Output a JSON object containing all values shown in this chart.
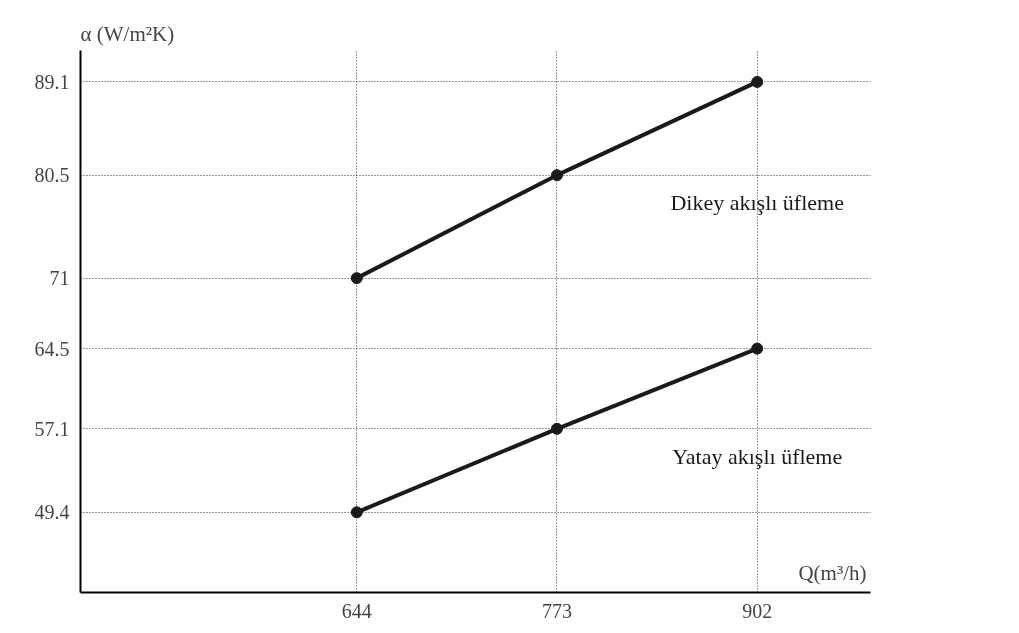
{
  "chart_data": {
    "type": "line",
    "xlabel": "Q(m³/h)",
    "ylabel": "α (W/m²K)",
    "x": [
      644,
      773,
      902
    ],
    "series": [
      {
        "name": "Dikey akışlı üfleme",
        "color": "#1a1a1a",
        "values": [
          71,
          80.5,
          89.1
        ]
      },
      {
        "name": "Yatay akışlı üfleme",
        "color": "#1a1a1a",
        "values": [
          49.4,
          57.1,
          64.5
        ]
      }
    ],
    "xlim": [
      466,
      975
    ],
    "ylim": [
      42,
      92
    ],
    "xticks": [
      644,
      773,
      902
    ],
    "yticks": [
      49.4,
      57.1,
      64.5,
      71,
      80.5,
      89.1
    ],
    "grid": true,
    "marker": "circle",
    "line_style": "solid"
  }
}
